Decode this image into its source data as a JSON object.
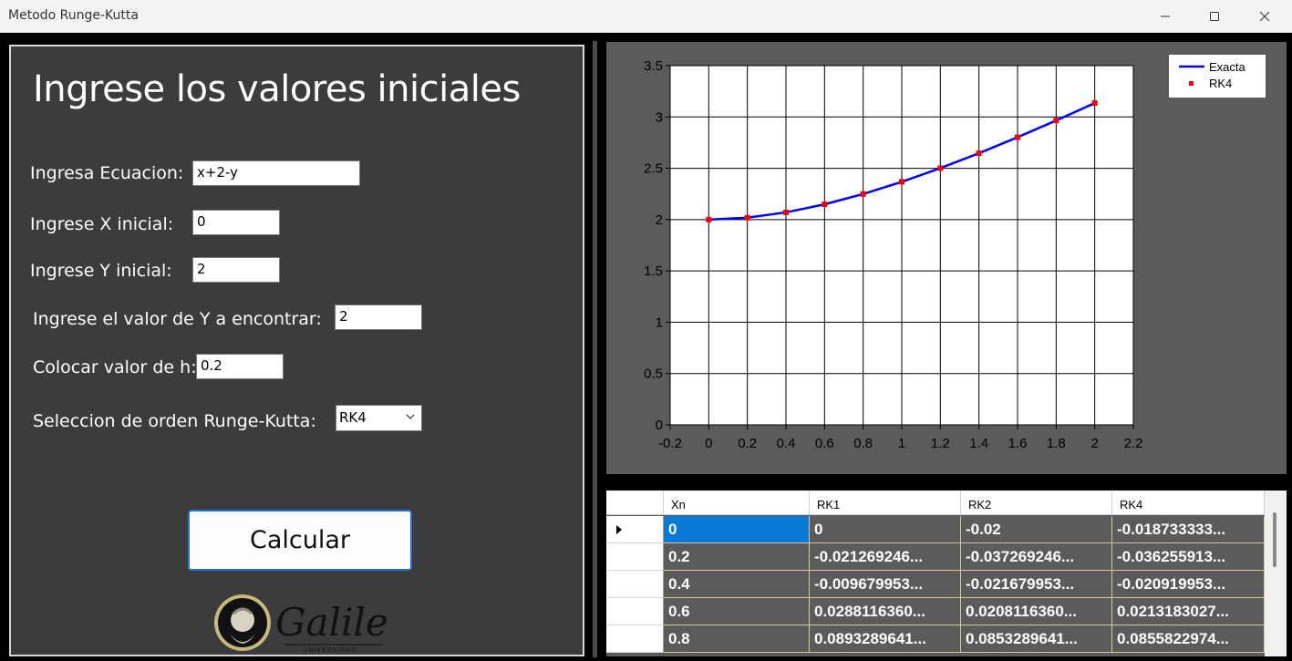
{
  "window": {
    "title": "Metodo Runge-Kutta"
  },
  "form": {
    "heading": "Ingrese los valores iniciales",
    "equation_label": "Ingresa Ecuacion:",
    "equation_value": "x+2-y",
    "x0_label": "Ingrese X inicial:",
    "x0_value": "0",
    "y0_label": "Ingrese Y inicial:",
    "y0_value": "2",
    "target_label": "Ingrese el valor de Y a encontrar:",
    "target_value": "2",
    "h_label": "Colocar valor de h:",
    "h_value": "0.2",
    "order_label": "Seleccion de orden Runge-Kutta:",
    "order_value": "RK4",
    "calc_button": "Calcular",
    "logo_text": "Galileo",
    "logo_subtext": "UNIVERSIDAD"
  },
  "chart_data": {
    "type": "line",
    "x": [
      0,
      0.2,
      0.4,
      0.6,
      0.8,
      1,
      1.2,
      1.4,
      1.6,
      1.8,
      2
    ],
    "series": [
      {
        "name": "Exacta",
        "style": "line",
        "color": "#0000ff",
        "values": [
          2,
          2.0187,
          2.0703,
          2.1488,
          2.2493,
          2.3679,
          2.5012,
          2.6466,
          2.8019,
          2.9653,
          3.1353
        ]
      },
      {
        "name": "RK4",
        "style": "points",
        "color": "#ff0000",
        "values": [
          2,
          2.0187,
          2.0703,
          2.1488,
          2.2493,
          2.3679,
          2.5012,
          2.6466,
          2.8019,
          2.9653,
          3.1353
        ]
      }
    ],
    "xlim": [
      -0.2,
      2.2
    ],
    "ylim": [
      0,
      3.5
    ],
    "xticks": [
      "-0.2",
      "0",
      "0.2",
      "0.4",
      "0.6",
      "0.8",
      "1",
      "1.2",
      "1.4",
      "1.6",
      "1.8",
      "2",
      "2.2"
    ],
    "yticks": [
      "0",
      "0.5",
      "1",
      "1.5",
      "2",
      "2.5",
      "3",
      "3.5"
    ],
    "grid": true,
    "legend": "top-right"
  },
  "table": {
    "columns": [
      "Xn",
      "RK1",
      "RK2",
      "RK4"
    ],
    "rows": [
      [
        "0",
        "0",
        "-0.02",
        "-0.018733333..."
      ],
      [
        "0.2",
        "-0.021269246...",
        "-0.037269246...",
        "-0.036255913..."
      ],
      [
        "0.4",
        "-0.009679953...",
        "-0.021679953...",
        "-0.020919953..."
      ],
      [
        "0.6",
        "0.0288116360...",
        "0.0208116360...",
        "0.0213183027..."
      ],
      [
        "0.8",
        "0.0893289641...",
        "0.0853289641...",
        "0.0855822974..."
      ]
    ]
  }
}
